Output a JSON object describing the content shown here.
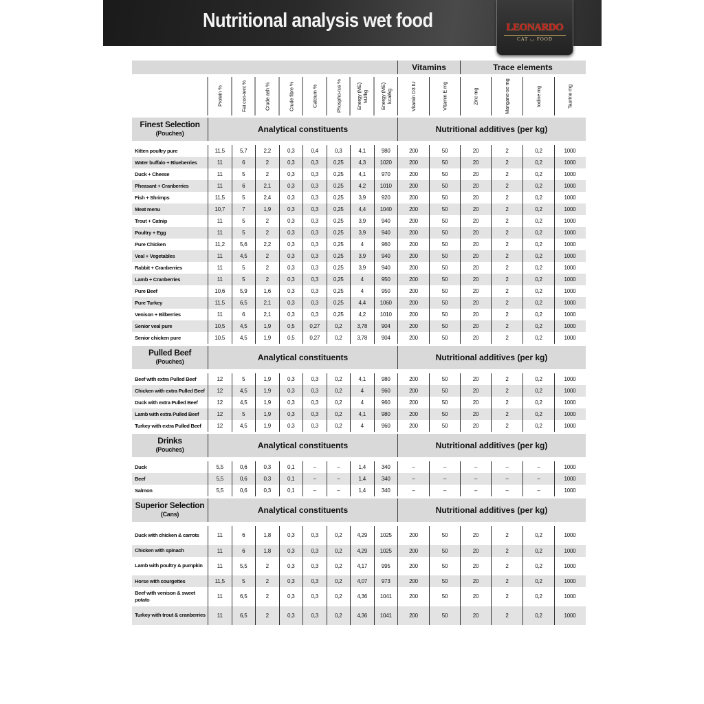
{
  "header": {
    "title": "Nutritional analysis wet food",
    "logo": {
      "brand": "LEONARDO",
      "sub_left": "CAT",
      "sub_right": "FOOD"
    }
  },
  "groups": {
    "vitamins": "Vitamins",
    "trace": "Trace elements"
  },
  "columns": [
    "Protein %",
    "Fat con-tent %",
    "Crude ash %",
    "Crude fibre %",
    "Calcium %",
    "Phospho-rus %",
    "Energy (ME) MJ/kg",
    "Energy (ME) kcal/kg",
    "Vitamin D3 IU",
    "Vitamin E mg",
    "Zinc mg",
    "Mangane-se mg",
    "Iodine mg",
    "Taurine mg"
  ],
  "sections": [
    {
      "name": "Finest Selection",
      "pack": "(Pouches)",
      "analytical": "Analytical constituents",
      "additives": "Nutritional additives (per kg)",
      "rows": [
        [
          "Kitten poultry pure",
          "11,5",
          "5,7",
          "2,2",
          "0,3",
          "0,4",
          "0,3",
          "4,1",
          "980",
          "200",
          "50",
          "20",
          "2",
          "0,2",
          "1000"
        ],
        [
          "Water buffalo + Blueberries",
          "11",
          "6",
          "2",
          "0,3",
          "0,3",
          "0,25",
          "4,3",
          "1020",
          "200",
          "50",
          "20",
          "2",
          "0,2",
          "1000"
        ],
        [
          "Duck + Cheese",
          "11",
          "5",
          "2",
          "0,3",
          "0,3",
          "0,25",
          "4,1",
          "970",
          "200",
          "50",
          "20",
          "2",
          "0,2",
          "1000"
        ],
        [
          "Pheasant + Cranberries",
          "11",
          "6",
          "2,1",
          "0,3",
          "0,3",
          "0,25",
          "4,2",
          "1010",
          "200",
          "50",
          "20",
          "2",
          "0,2",
          "1000"
        ],
        [
          "Fish + Shrimps",
          "11,5",
          "5",
          "2,4",
          "0,3",
          "0,3",
          "0,25",
          "3,9",
          "920",
          "200",
          "50",
          "20",
          "2",
          "0,2",
          "1000"
        ],
        [
          "Meat menu",
          "10,7",
          "7",
          "1,9",
          "0,3",
          "0,3",
          "0,25",
          "4,4",
          "1040",
          "200",
          "50",
          "20",
          "2",
          "0,2",
          "1000"
        ],
        [
          "Trout + Catnip",
          "11",
          "5",
          "2",
          "0,3",
          "0,3",
          "0,25",
          "3,9",
          "940",
          "200",
          "50",
          "20",
          "2",
          "0,2",
          "1000"
        ],
        [
          "Poultry + Egg",
          "11",
          "5",
          "2",
          "0,3",
          "0,3",
          "0,25",
          "3,9",
          "940",
          "200",
          "50",
          "20",
          "2",
          "0,2",
          "1000"
        ],
        [
          "Pure Chicken",
          "11,2",
          "5,6",
          "2,2",
          "0,3",
          "0,3",
          "0,25",
          "4",
          "960",
          "200",
          "50",
          "20",
          "2",
          "0,2",
          "1000"
        ],
        [
          "Veal + Vegetables",
          "11",
          "4,5",
          "2",
          "0,3",
          "0,3",
          "0,25",
          "3,9",
          "940",
          "200",
          "50",
          "20",
          "2",
          "0,2",
          "1000"
        ],
        [
          "Rabbit + Cranberries",
          "11",
          "5",
          "2",
          "0,3",
          "0,3",
          "0,25",
          "3,9",
          "940",
          "200",
          "50",
          "20",
          "2",
          "0,2",
          "1000"
        ],
        [
          "Lamb + Cranberries",
          "11",
          "5",
          "2",
          "0,3",
          "0,3",
          "0,25",
          "4",
          "950",
          "200",
          "50",
          "20",
          "2",
          "0,2",
          "1000"
        ],
        [
          "Pure Beef",
          "10,6",
          "5,9",
          "1,6",
          "0,3",
          "0,3",
          "0,25",
          "4",
          "950",
          "200",
          "50",
          "20",
          "2",
          "0,2",
          "1000"
        ],
        [
          "Pure Turkey",
          "11,5",
          "6,5",
          "2,1",
          "0,3",
          "0,3",
          "0,25",
          "4,4",
          "1060",
          "200",
          "50",
          "20",
          "2",
          "0,2",
          "1000"
        ],
        [
          "Venison + Bilberries",
          "11",
          "6",
          "2,1",
          "0,3",
          "0,3",
          "0,25",
          "4,2",
          "1010",
          "200",
          "50",
          "20",
          "2",
          "0,2",
          "1000"
        ],
        [
          "Senior veal pure",
          "10,5",
          "4,5",
          "1,9",
          "0,5",
          "0,27",
          "0,2",
          "3,78",
          "904",
          "200",
          "50",
          "20",
          "2",
          "0,2",
          "1000"
        ],
        [
          "Senior chicken pure",
          "10,5",
          "4,5",
          "1,9",
          "0,5",
          "0,27",
          "0,2",
          "3,78",
          "904",
          "200",
          "50",
          "20",
          "2",
          "0,2",
          "1000"
        ]
      ]
    },
    {
      "name": "Pulled Beef",
      "pack": "(Pouches)",
      "analytical": "Analytical constituents",
      "additives": "Nutritional additives (per kg)",
      "rows": [
        [
          "Beef with extra Pulled Beef",
          "12",
          "5",
          "1,9",
          "0,3",
          "0,3",
          "0,2",
          "4,1",
          "980",
          "200",
          "50",
          "20",
          "2",
          "0,2",
          "1000"
        ],
        [
          "Chicken with extra Pulled Beef",
          "12",
          "4,5",
          "1,9",
          "0,3",
          "0,3",
          "0,2",
          "4",
          "960",
          "200",
          "50",
          "20",
          "2",
          "0,2",
          "1000"
        ],
        [
          "Duck with extra Pulled Beef",
          "12",
          "4,5",
          "1,9",
          "0,3",
          "0,3",
          "0,2",
          "4",
          "960",
          "200",
          "50",
          "20",
          "2",
          "0,2",
          "1000"
        ],
        [
          "Lamb with extra Pulled Beef",
          "12",
          "5",
          "1,9",
          "0,3",
          "0,3",
          "0,2",
          "4,1",
          "980",
          "200",
          "50",
          "20",
          "2",
          "0,2",
          "1000"
        ],
        [
          "Turkey with extra Pulled Beef",
          "12",
          "4,5",
          "1,9",
          "0,3",
          "0,3",
          "0,2",
          "4",
          "960",
          "200",
          "50",
          "20",
          "2",
          "0,2",
          "1000"
        ]
      ]
    },
    {
      "name": "Drinks",
      "pack": "(Pouches)",
      "analytical": "Analytical constituents",
      "additives": "Nutritional additives (per kg)",
      "rows": [
        [
          "Duck",
          "5,5",
          "0,6",
          "0,3",
          "0,1",
          "–",
          "–",
          "1,4",
          "340",
          "–",
          "–",
          "–",
          "–",
          "–",
          "1000"
        ],
        [
          "Beef",
          "5,5",
          "0,6",
          "0,3",
          "0,1",
          "–",
          "–",
          "1,4",
          "340",
          "–",
          "–",
          "–",
          "–",
          "–",
          "1000"
        ],
        [
          "Salmon",
          "5,5",
          "0,6",
          "0,3",
          "0,1",
          "–",
          "–",
          "1,4",
          "340",
          "–",
          "–",
          "–",
          "–",
          "–",
          "1000"
        ]
      ]
    },
    {
      "name": "Superior Selection",
      "pack": "(Cans)",
      "analytical": "Analytical constituents",
      "additives": "Nutritional additives (per kg)",
      "rows": [
        [
          "Duck with chicken & carrots",
          "11",
          "6",
          "1,8",
          "0,3",
          "0,3",
          "0,2",
          "4,29",
          "1025",
          "200",
          "50",
          "20",
          "2",
          "0,2",
          "1000"
        ],
        [
          "Chicken with spinach",
          "11",
          "6",
          "1,8",
          "0,3",
          "0,3",
          "0,2",
          "4,29",
          "1025",
          "200",
          "50",
          "20",
          "2",
          "0,2",
          "1000"
        ],
        [
          "Lamb with poultry & pumpkin",
          "11",
          "5,5",
          "2",
          "0,3",
          "0,3",
          "0,2",
          "4,17",
          "995",
          "200",
          "50",
          "20",
          "2",
          "0,2",
          "1000"
        ],
        [
          "Horse with courgettes",
          "11,5",
          "5",
          "2",
          "0,3",
          "0,3",
          "0,2",
          "4,07",
          "973",
          "200",
          "50",
          "20",
          "2",
          "0,2",
          "1000"
        ],
        [
          "Beef with venison & sweet potato",
          "11",
          "6,5",
          "2",
          "0,3",
          "0,3",
          "0,2",
          "4,36",
          "1041",
          "200",
          "50",
          "20",
          "2",
          "0,2",
          "1000"
        ],
        [
          "Turkey with trout & cranberries",
          "11",
          "6,5",
          "2",
          "0,3",
          "0,3",
          "0,2",
          "4,36",
          "1041",
          "200",
          "50",
          "20",
          "2",
          "0,2",
          "1000"
        ]
      ]
    }
  ],
  "colors": {
    "banner": "#222222",
    "band": "#d9d9d9",
    "row_alt": "#e3e3e3",
    "logo_red": "#c81e1e"
  }
}
